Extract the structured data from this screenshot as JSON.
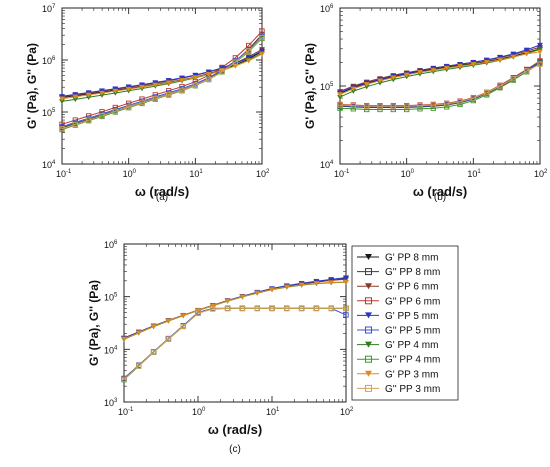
{
  "chart_data": [
    {
      "type": "line",
      "panel_label": "(a)",
      "xlabel": "ω (rad/s)",
      "ylabel": "G' (Pa), G'' (Pa)",
      "x_scale": "log",
      "y_scale": "log",
      "xlim": [
        0.1,
        100
      ],
      "ylim": [
        10000,
        10000000
      ],
      "x_ticks": [
        {
          "value": 0.1,
          "base": "10",
          "exp": "-1"
        },
        {
          "value": 1,
          "base": "10",
          "exp": "0"
        },
        {
          "value": 10,
          "base": "10",
          "exp": "1"
        },
        {
          "value": 100,
          "base": "10",
          "exp": "2"
        }
      ],
      "y_ticks": [
        {
          "value": 10000,
          "base": "10",
          "exp": "4"
        },
        {
          "value": 100000,
          "base": "10",
          "exp": "5"
        },
        {
          "value": 1000000,
          "base": "10",
          "exp": "6"
        },
        {
          "value": 10000000,
          "base": "10",
          "exp": "7"
        }
      ],
      "x": [
        0.1,
        0.1585,
        0.2512,
        0.3981,
        0.631,
        1.0,
        1.585,
        2.512,
        3.981,
        6.31,
        10.0,
        15.85,
        25.12,
        39.81,
        63.1,
        100.0
      ],
      "series": [
        {
          "name": "G' PP 8 mm",
          "color": "#1a1a1a",
          "marker": "triangle-down",
          "values": [
            190000,
            205000,
            222000,
            240000,
            260000,
            283000,
            308000,
            338000,
            373000,
            415000,
            470000,
            545000,
            650000,
            800000,
            1050000,
            1450000
          ]
        },
        {
          "name": "G'' PP 8 mm",
          "color": "#3a3a3a",
          "marker": "square",
          "values": [
            50000,
            60000,
            72000,
            87000,
            105000,
            126000,
            152000,
            183000,
            220000,
            265000,
            330000,
            430000,
            620000,
            950000,
            1600000,
            3100000
          ]
        },
        {
          "name": "G' PP 6 mm",
          "color": "#8b3a2a",
          "marker": "triangle-down",
          "values": [
            195000,
            212000,
            230000,
            250000,
            272000,
            297000,
            325000,
            358000,
            397000,
            445000,
            505000,
            585000,
            700000,
            870000,
            1150000,
            1600000
          ]
        },
        {
          "name": "G'' PP 6 mm",
          "color": "#c0392b",
          "marker": "square",
          "values": [
            58000,
            70000,
            84000,
            101000,
            122000,
            147000,
            177000,
            213000,
            256000,
            308000,
            385000,
            505000,
            720000,
            1100000,
            1900000,
            3600000
          ]
        },
        {
          "name": "G' PP 5 mm",
          "color": "#2a35c9",
          "marker": "triangle-down",
          "values": [
            200000,
            218000,
            237000,
            258000,
            281000,
            307000,
            336000,
            369000,
            408000,
            455000,
            515000,
            595000,
            705000,
            860000,
            1100000,
            1500000
          ]
        },
        {
          "name": "G'' PP 5 mm",
          "color": "#3b4fd6",
          "marker": "square",
          "values": [
            52000,
            63000,
            76000,
            92000,
            111000,
            134000,
            161000,
            194000,
            233000,
            280000,
            350000,
            455000,
            640000,
            960000,
            1550000,
            2800000
          ]
        },
        {
          "name": "G' PP 4 mm",
          "color": "#2e7d1f",
          "marker": "triangle-down",
          "values": [
            160000,
            175000,
            192000,
            211000,
            232000,
            256000,
            283000,
            315000,
            352000,
            396000,
            452000,
            528000,
            632000,
            780000,
            1000000,
            1350000
          ]
        },
        {
          "name": "G'' PP 4 mm",
          "color": "#3a9a2b",
          "marker": "square",
          "values": [
            46000,
            56000,
            68000,
            82000,
            100000,
            121000,
            146000,
            176000,
            212000,
            256000,
            320000,
            420000,
            590000,
            890000,
            1450000,
            2600000
          ]
        },
        {
          "name": "G' PP 3 mm",
          "color": "#e08a1e",
          "marker": "triangle-down",
          "values": [
            180000,
            196000,
            213000,
            232000,
            253000,
            276000,
            302000,
            332000,
            367000,
            409000,
            462000,
            532000,
            628000,
            765000,
            970000,
            1300000
          ]
        },
        {
          "name": "G'' PP 3 mm",
          "color": "#d4a05a",
          "marker": "square",
          "values": [
            48000,
            58000,
            70000,
            85000,
            103000,
            124000,
            150000,
            180000,
            217000,
            261000,
            326000,
            425000,
            600000,
            910000,
            1500000,
            2700000
          ]
        }
      ]
    },
    {
      "type": "line",
      "panel_label": "(b)",
      "xlabel": "ω (rad/s)",
      "ylabel": "G' (Pa), G'' (Pa)",
      "x_scale": "log",
      "y_scale": "log",
      "xlim": [
        0.1,
        100
      ],
      "ylim": [
        10000,
        1000000
      ],
      "x_ticks": [
        {
          "value": 0.1,
          "base": "10",
          "exp": "-1"
        },
        {
          "value": 1,
          "base": "10",
          "exp": "0"
        },
        {
          "value": 10,
          "base": "10",
          "exp": "1"
        },
        {
          "value": 100,
          "base": "10",
          "exp": "2"
        }
      ],
      "y_ticks": [
        {
          "value": 10000,
          "base": "10",
          "exp": "4"
        },
        {
          "value": 100000,
          "base": "10",
          "exp": "5"
        },
        {
          "value": 1000000,
          "base": "10",
          "exp": "6"
        }
      ],
      "x": [
        0.1,
        0.1585,
        0.2512,
        0.3981,
        0.631,
        1.0,
        1.585,
        2.512,
        3.981,
        6.31,
        10.0,
        15.85,
        25.12,
        39.81,
        63.1,
        100.0
      ],
      "series": [
        {
          "name": "G' PP 8 mm",
          "color": "#1a1a1a",
          "marker": "triangle-down",
          "values": [
            80000,
            95000,
            108000,
            120000,
            132000,
            143000,
            154000,
            164000,
            174000,
            184000,
            194000,
            206000,
            222000,
            242000,
            268000,
            300000
          ]
        },
        {
          "name": "G'' PP 8 mm",
          "color": "#3a3a3a",
          "marker": "square",
          "values": [
            55000,
            54000,
            53000,
            53000,
            53000,
            53000,
            54000,
            55000,
            57000,
            61000,
            68000,
            80000,
            98000,
            122000,
            155000,
            200000
          ]
        },
        {
          "name": "G' PP 6 mm",
          "color": "#8b3a2a",
          "marker": "triangle-down",
          "values": [
            85000,
            100000,
            113000,
            125000,
            137000,
            148000,
            159000,
            170000,
            180000,
            190000,
            201000,
            214000,
            231000,
            252000,
            280000,
            315000
          ]
        },
        {
          "name": "G'' PP 6 mm",
          "color": "#c0392b",
          "marker": "square",
          "values": [
            58000,
            57000,
            56000,
            56000,
            56000,
            56000,
            57000,
            58000,
            60000,
            64000,
            71000,
            83000,
            102000,
            128000,
            163000,
            210000
          ]
        },
        {
          "name": "G' PP 5 mm",
          "color": "#2a35c9",
          "marker": "triangle-down",
          "values": [
            82000,
            97000,
            110000,
            122000,
            134000,
            146000,
            157000,
            168000,
            179000,
            190000,
            202000,
            216000,
            235000,
            258000,
            290000,
            335000
          ]
        },
        {
          "name": "G'' PP 5 mm",
          "color": "#3b4fd6",
          "marker": "square",
          "values": [
            56000,
            55000,
            54000,
            54000,
            54000,
            54000,
            55000,
            56000,
            58000,
            62000,
            69000,
            81000,
            100000,
            125000,
            160000,
            205000
          ]
        },
        {
          "name": "G' PP 4 mm",
          "color": "#2e7d1f",
          "marker": "triangle-down",
          "values": [
            72000,
            86000,
            98000,
            110000,
            121000,
            132000,
            143000,
            153000,
            163000,
            173000,
            184000,
            197000,
            214000,
            235000,
            262000,
            295000
          ]
        },
        {
          "name": "G'' PP 4 mm",
          "color": "#3a9a2b",
          "marker": "square",
          "values": [
            52000,
            51000,
            50000,
            50000,
            50000,
            50000,
            51000,
            52000,
            54000,
            58000,
            65000,
            77000,
            95000,
            119000,
            152000,
            196000
          ]
        },
        {
          "name": "G' PP 3 mm",
          "color": "#e08a1e",
          "marker": "triangle-down",
          "values": [
            78000,
            92000,
            105000,
            117000,
            128000,
            139000,
            150000,
            160000,
            170000,
            180000,
            190000,
            202000,
            217000,
            236000,
            258000,
            275000
          ]
        },
        {
          "name": "G'' PP 3 mm",
          "color": "#d4a05a",
          "marker": "square",
          "values": [
            57000,
            56000,
            55000,
            55000,
            55000,
            55000,
            56000,
            57000,
            59000,
            63000,
            70000,
            82000,
            100000,
            124000,
            156000,
            190000
          ]
        }
      ]
    },
    {
      "type": "line",
      "panel_label": "(c)",
      "xlabel": "ω (rad/s)",
      "ylabel": "G' (Pa), G'' (Pa)",
      "x_scale": "log",
      "y_scale": "log",
      "xlim": [
        0.1,
        100
      ],
      "ylim": [
        1000,
        1000000
      ],
      "x_ticks": [
        {
          "value": 0.1,
          "base": "10",
          "exp": "-1"
        },
        {
          "value": 1,
          "base": "10",
          "exp": "0"
        },
        {
          "value": 10,
          "base": "10",
          "exp": "1"
        },
        {
          "value": 100,
          "base": "10",
          "exp": "2"
        }
      ],
      "y_ticks": [
        {
          "value": 1000,
          "base": "10",
          "exp": "3"
        },
        {
          "value": 10000,
          "base": "10",
          "exp": "4"
        },
        {
          "value": 100000,
          "base": "10",
          "exp": "5"
        },
        {
          "value": 1000000,
          "base": "10",
          "exp": "6"
        }
      ],
      "legend_position": "right",
      "x": [
        0.1,
        0.1585,
        0.2512,
        0.3981,
        0.631,
        1.0,
        1.585,
        2.512,
        3.981,
        6.31,
        10.0,
        15.85,
        25.12,
        39.81,
        63.1,
        100.0
      ],
      "series": [
        {
          "name": "G' PP 8 mm",
          "color": "#1a1a1a",
          "marker": "triangle-down",
          "values": [
            16000,
            21000,
            27500,
            35000,
            44000,
            55000,
            68000,
            84000,
            101000,
            120000,
            140000,
            158000,
            175000,
            190000,
            205000,
            220000
          ]
        },
        {
          "name": "G'' PP 8 mm",
          "color": "#3a3a3a",
          "marker": "square",
          "values": [
            2800,
            5000,
            9000,
            16000,
            28000,
            50000,
            60000,
            60000,
            60000,
            60000,
            60000,
            60000,
            60000,
            60000,
            60000,
            60000
          ]
        },
        {
          "name": "G' PP 6 mm",
          "color": "#8b3a2a",
          "marker": "triangle-down",
          "values": [
            16500,
            21500,
            28000,
            35500,
            44500,
            55500,
            68500,
            84500,
            101500,
            120500,
            140500,
            158500,
            175500,
            190000,
            204000,
            215000
          ]
        },
        {
          "name": "G'' PP 6 mm",
          "color": "#c0392b",
          "marker": "square",
          "values": [
            2700,
            4900,
            8900,
            15800,
            27500,
            49000,
            59000,
            60000,
            60000,
            60000,
            60000,
            60000,
            60000,
            60000,
            60000,
            60000
          ]
        },
        {
          "name": "G' PP 5 mm",
          "color": "#2a35c9",
          "marker": "triangle-down",
          "values": [
            16200,
            21200,
            27700,
            35200,
            44200,
            55200,
            68200,
            84500,
            102000,
            122000,
            143000,
            162000,
            180000,
            197000,
            213000,
            230000
          ]
        },
        {
          "name": "G'' PP 5 mm",
          "color": "#3b4fd6",
          "marker": "square",
          "values": [
            2750,
            4950,
            9000,
            16000,
            28000,
            50000,
            59500,
            60000,
            60000,
            60000,
            60000,
            60000,
            60000,
            60000,
            60000,
            45000
          ]
        },
        {
          "name": "G' PP 4 mm",
          "color": "#2e7d1f",
          "marker": "triangle-down",
          "values": [
            15500,
            20500,
            27000,
            34500,
            43500,
            54500,
            67000,
            82500,
            99000,
            117000,
            136000,
            152000,
            166000,
            177000,
            184000,
            188000
          ]
        },
        {
          "name": "G'' PP 4 mm",
          "color": "#3a9a2b",
          "marker": "square",
          "values": [
            2650,
            4800,
            8800,
            15600,
            27200,
            48500,
            58500,
            59500,
            59500,
            59500,
            59500,
            59500,
            59500,
            59500,
            59500,
            59500
          ]
        },
        {
          "name": "G' PP 3 mm",
          "color": "#e08a1e",
          "marker": "triangle-down",
          "values": [
            15800,
            20800,
            27300,
            34800,
            43800,
            54800,
            67500,
            83000,
            100000,
            118000,
            137000,
            154000,
            168000,
            179000,
            186000,
            190000
          ]
        },
        {
          "name": "G'' PP 3 mm",
          "color": "#d4a05a",
          "marker": "square",
          "values": [
            2700,
            4850,
            8850,
            15700,
            27300,
            48800,
            58800,
            59800,
            59800,
            59800,
            59800,
            59800,
            59800,
            59800,
            59800,
            59800
          ]
        }
      ]
    }
  ]
}
